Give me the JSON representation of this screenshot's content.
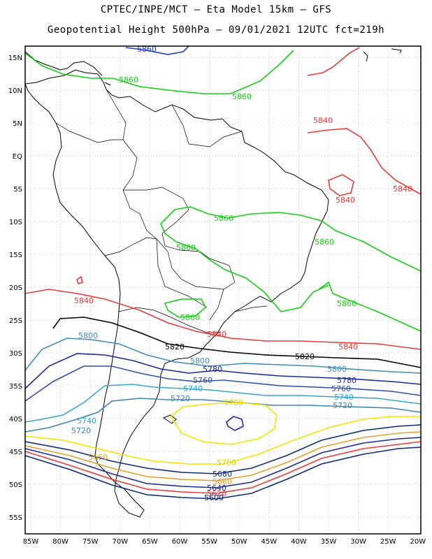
{
  "header": {
    "line1": "CPTEC/INPE/MCT –  Eta Model 15km – GFS",
    "line2": "Geopotential Height 500hPa – 09/01/2021 12UTC fct=219h"
  },
  "lat_ticks": [
    "15N",
    "10N",
    "5N",
    "EQ",
    "5S",
    "10S",
    "15S",
    "20S",
    "25S",
    "30S",
    "35S",
    "40S",
    "45S",
    "50S",
    "55S"
  ],
  "lon_ticks": [
    "85W",
    "80W",
    "75W",
    "70W",
    "65W",
    "60W",
    "55W",
    "50W",
    "45W",
    "40W",
    "35W",
    "30W",
    "25W",
    "20W"
  ],
  "colors": {
    "c5660": "#e6a02a",
    "c5680": "#0c2a7a",
    "c5700": "#f2e600",
    "c5720": "#3b86b8",
    "c5740": "#35a8c9",
    "c5760": "#2f4fb0",
    "c5780": "#1a2a9a",
    "c5800": "#3f8eb6",
    "c5820": "#000000",
    "c5840": "#ea3b3b",
    "c5860": "#16d016",
    "coast": "#000000",
    "grid": "#c8c8c8"
  },
  "contour_labels": [
    {
      "id": "l5860a",
      "text": "5860",
      "color": "#1f3fd0"
    },
    {
      "id": "l5860b",
      "text": "5860",
      "color": "#16d016"
    },
    {
      "id": "l5860c",
      "text": "5860",
      "color": "#16d016"
    },
    {
      "id": "l5860d",
      "text": "5860",
      "color": "#16d016"
    },
    {
      "id": "l5860e",
      "text": "5860",
      "color": "#16d016"
    },
    {
      "id": "l5860f",
      "text": "5860",
      "color": "#16d016"
    },
    {
      "id": "l5860g",
      "text": "5860",
      "color": "#16d016"
    },
    {
      "id": "l5860h",
      "text": "5860",
      "color": "#16d016"
    },
    {
      "id": "l5840a",
      "text": "5840",
      "color": "#ea3b3b"
    },
    {
      "id": "l5840b",
      "text": "5840",
      "color": "#ea3b3b"
    },
    {
      "id": "l5840c",
      "text": "5840",
      "color": "#ea3b3b"
    },
    {
      "id": "l5840d",
      "text": "5840",
      "color": "#ea3b3b"
    },
    {
      "id": "l5840e",
      "text": "5840",
      "color": "#ea3b3b"
    },
    {
      "id": "l5840f",
      "text": "5840",
      "color": "#ea3b3b"
    },
    {
      "id": "l5820a",
      "text": "5820",
      "color": "#000000"
    },
    {
      "id": "l5820b",
      "text": "5820",
      "color": "#000000"
    },
    {
      "id": "l5800a",
      "text": "5800",
      "color": "#3f8eb6"
    },
    {
      "id": "l5800b",
      "text": "5800",
      "color": "#3f8eb6"
    },
    {
      "id": "l5800c",
      "text": "5800",
      "color": "#3f8eb6"
    },
    {
      "id": "l5780a",
      "text": "5780",
      "color": "#1a2a9a"
    },
    {
      "id": "l5780b",
      "text": "5780",
      "color": "#1a2a9a"
    },
    {
      "id": "l5760a",
      "text": "5760",
      "color": "#2f4fb0"
    },
    {
      "id": "l5760b",
      "text": "5760",
      "color": "#2f4fb0"
    },
    {
      "id": "l5740a",
      "text": "5740",
      "color": "#35a8c9"
    },
    {
      "id": "l5740b",
      "text": "5740",
      "color": "#35a8c9"
    },
    {
      "id": "l5740c",
      "text": "5740",
      "color": "#35a8c9"
    },
    {
      "id": "l5720a",
      "text": "5720",
      "color": "#3b86b8"
    },
    {
      "id": "l5720b",
      "text": "5720",
      "color": "#3b86b8"
    },
    {
      "id": "l5720c",
      "text": "5720",
      "color": "#3b86b8"
    },
    {
      "id": "l5700a",
      "text": "5700",
      "color": "#e6d000"
    },
    {
      "id": "l5700b",
      "text": "5700",
      "color": "#e6d000"
    },
    {
      "id": "l5660a",
      "text": "5660",
      "color": "#e6a02a"
    },
    {
      "id": "l5680a",
      "text": "5680",
      "color": "#0c2a7a"
    },
    {
      "id": "l5660b",
      "text": "5660",
      "color": "#e6a02a"
    },
    {
      "id": "l5640a",
      "text": "5640",
      "color": "#1a2a9a"
    },
    {
      "id": "l5620a",
      "text": "5620",
      "color": "#ea3b3b"
    },
    {
      "id": "l5600a",
      "text": "5600",
      "color": "#0c2a7a"
    }
  ]
}
